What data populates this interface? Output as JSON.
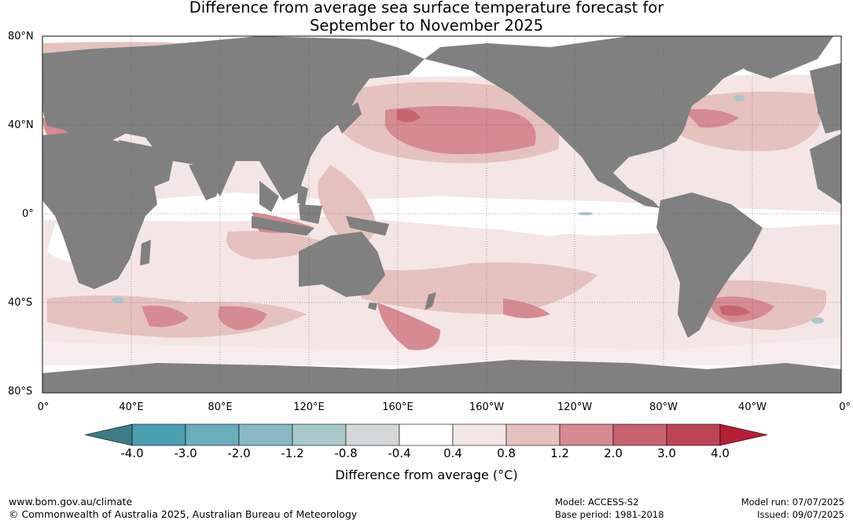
{
  "title_line1": "Difference from average sea surface temperature forecast for",
  "title_line2": "September to November 2025",
  "lat_labels": [
    "80°N",
    "40°N",
    "0°",
    "40°S",
    "80°S"
  ],
  "lon_labels": [
    "0°",
    "40°E",
    "80°E",
    "120°E",
    "160°E",
    "160°W",
    "120°W",
    "80°W",
    "40°W",
    "0°"
  ],
  "colorbar": {
    "ticks": [
      "-4.0",
      "-3.0",
      "-2.0",
      "-1.2",
      "-0.8",
      "-0.4",
      "0.4",
      "0.8",
      "1.2",
      "2.0",
      "3.0",
      "4.0"
    ],
    "colors": [
      "#4a9fb0",
      "#69aebb",
      "#88b8c4",
      "#a8c8cc",
      "#d3d8d8",
      "#ffffff",
      "#f4e6e4",
      "#e5c2be",
      "#d68a92",
      "#c8646e",
      "#bd4453"
    ],
    "under_color": "#3d7b87",
    "over_color": "#b51e35",
    "label": "Difference from average (°C)"
  },
  "footer": {
    "url": "www.bom.gov.au/climate",
    "copyright": "© Commonwealth of Australia 2025, Australian Bureau of Meteorology",
    "model": "Model: ACCESS-S2",
    "base_period": "Base period: 1981-2018",
    "model_run": "Model run: 07/07/2025",
    "issued": "Issued: 09/07/2025"
  }
}
